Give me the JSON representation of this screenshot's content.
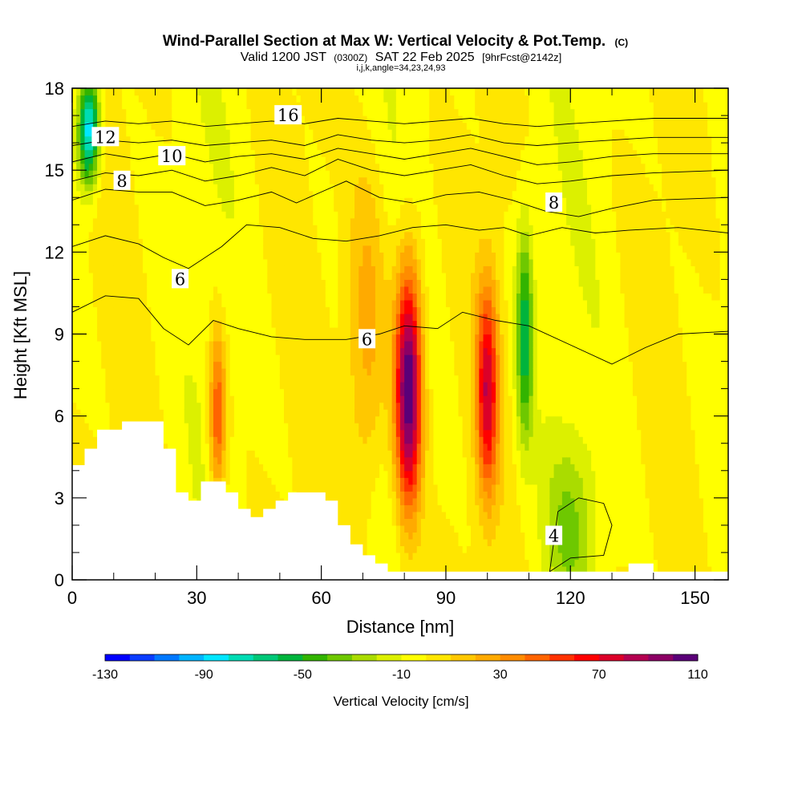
{
  "chart_data": {
    "type": "heatmap",
    "title": {
      "main": "Wind-Parallel Section at Max W: Vertical Velocity & Pot.Temp.",
      "main_suffix": "(C)",
      "valid_prefix": "Valid 1200 JST",
      "valid_utc": "(0300Z)",
      "valid_date": "SAT 22 Feb 2025",
      "forecast": "[9hrFcst@2142z]",
      "indices": "i,j,k,angle=34,23,24,93"
    },
    "xlabel": "Distance [nm]",
    "ylabel": "Height [Kft MSL]",
    "xlim": [
      0,
      158
    ],
    "ylim": [
      0,
      18
    ],
    "x_ticks": [
      "0",
      "30",
      "60",
      "90",
      "120",
      "150"
    ],
    "y_ticks": [
      "0",
      "3",
      "6",
      "9",
      "12",
      "15",
      "18"
    ],
    "colorbar": {
      "label": "Vertical Velocity [cm/s]",
      "tick_labels": [
        "-130",
        "-90",
        "-50",
        "-10",
        "30",
        "70",
        "110"
      ],
      "colors": [
        "#0000ff",
        "#0a3cff",
        "#0078ff",
        "#00b4ff",
        "#00e6ff",
        "#00dcb4",
        "#00c878",
        "#00b43c",
        "#32b400",
        "#6ec800",
        "#aadc00",
        "#dcf000",
        "#ffff00",
        "#ffe600",
        "#ffc800",
        "#ffaa00",
        "#ff8c00",
        "#ff6400",
        "#ff3200",
        "#ff0000",
        "#dc0028",
        "#b40050",
        "#8c0064",
        "#5a0078"
      ]
    },
    "updrafts": [
      {
        "x": 81,
        "z": 7,
        "w": 115,
        "sx": 3.2,
        "sz": 4.5
      },
      {
        "x": 100,
        "z": 7,
        "w": 75,
        "sx": 2.6,
        "sz": 3.8
      },
      {
        "x": 35,
        "z": 6,
        "w": 55,
        "sx": 2.0,
        "sz": 3.0
      },
      {
        "x": 71,
        "z": 9,
        "w": 30,
        "sx": 5.0,
        "sz": 6.0
      },
      {
        "x": 120,
        "z": 2,
        "w": -25,
        "sx": 6.0,
        "sz": 3.0
      },
      {
        "x": 109,
        "z": 9,
        "w": -55,
        "sx": 2.0,
        "sz": 4.0
      },
      {
        "x": 4,
        "z": 16.5,
        "w": -90,
        "sx": 2.5,
        "sz": 2.0
      }
    ],
    "terrain": [
      [
        0,
        4.2
      ],
      [
        3,
        4.2
      ],
      [
        3,
        4.8
      ],
      [
        6,
        4.8
      ],
      [
        6,
        5.5
      ],
      [
        12,
        5.5
      ],
      [
        12,
        5.8
      ],
      [
        22,
        5.8
      ],
      [
        22,
        4.8
      ],
      [
        25,
        4.8
      ],
      [
        25,
        3.2
      ],
      [
        28,
        3.2
      ],
      [
        28,
        2.9
      ],
      [
        31,
        2.9
      ],
      [
        31,
        3.6
      ],
      [
        37,
        3.6
      ],
      [
        37,
        3.2
      ],
      [
        40,
        3.2
      ],
      [
        40,
        2.6
      ],
      [
        43,
        2.6
      ],
      [
        43,
        2.3
      ],
      [
        46,
        2.3
      ],
      [
        46,
        2.6
      ],
      [
        49,
        2.6
      ],
      [
        49,
        2.9
      ],
      [
        52,
        2.9
      ],
      [
        52,
        3.2
      ],
      [
        61,
        3.2
      ],
      [
        61,
        2.9
      ],
      [
        64,
        2.9
      ],
      [
        64,
        2.0
      ],
      [
        67,
        2.0
      ],
      [
        67,
        1.3
      ],
      [
        70,
        1.3
      ],
      [
        70,
        0.9
      ],
      [
        73,
        0.9
      ],
      [
        73,
        0.6
      ],
      [
        76,
        0.6
      ],
      [
        76,
        0.3
      ],
      [
        134,
        0.3
      ],
      [
        134,
        0.6
      ],
      [
        140,
        0.6
      ],
      [
        140,
        0.3
      ],
      [
        158,
        0.3
      ]
    ],
    "theta_contours": [
      {
        "label": "4",
        "label_pos": [
          116,
          1.6
        ],
        "points": [
          [
            115,
            0.3
          ],
          [
            117,
            2.5
          ],
          [
            122,
            3.0
          ],
          [
            128,
            2.8
          ],
          [
            130,
            2.0
          ],
          [
            128,
            0.9
          ],
          [
            120,
            0.8
          ],
          [
            115,
            0.3
          ]
        ]
      },
      {
        "label": "6",
        "label_pos": [
          71,
          8.8
        ],
        "points": [
          [
            0,
            9.8
          ],
          [
            8,
            10.4
          ],
          [
            16,
            10.3
          ],
          [
            22,
            9.2
          ],
          [
            28,
            8.6
          ],
          [
            34,
            9.5
          ],
          [
            40,
            9.2
          ],
          [
            48,
            8.9
          ],
          [
            56,
            8.8
          ],
          [
            66,
            8.8
          ],
          [
            74,
            9.0
          ],
          [
            80,
            9.3
          ],
          [
            88,
            9.2
          ],
          [
            94,
            9.8
          ],
          [
            102,
            9.5
          ],
          [
            110,
            9.3
          ],
          [
            120,
            8.6
          ],
          [
            130,
            7.9
          ],
          [
            138,
            8.5
          ],
          [
            146,
            9.0
          ],
          [
            158,
            9.1
          ]
        ]
      },
      {
        "label": "6",
        "label_pos": [
          26,
          11.0
        ],
        "points": [
          [
            0,
            12.2
          ],
          [
            8,
            12.6
          ],
          [
            16,
            12.3
          ],
          [
            22,
            11.8
          ],
          [
            28,
            11.4
          ],
          [
            36,
            12.2
          ],
          [
            42,
            13.0
          ],
          [
            50,
            12.9
          ],
          [
            58,
            12.5
          ],
          [
            66,
            12.4
          ],
          [
            74,
            12.6
          ],
          [
            82,
            12.9
          ],
          [
            90,
            13.0
          ],
          [
            98,
            12.8
          ],
          [
            104,
            12.9
          ],
          [
            110,
            12.6
          ],
          [
            118,
            12.9
          ],
          [
            126,
            12.7
          ],
          [
            134,
            12.8
          ],
          [
            146,
            12.9
          ],
          [
            158,
            12.7
          ]
        ]
      },
      {
        "label": "8",
        "label_pos": [
          116,
          13.8
        ],
        "points": [
          [
            0,
            13.9
          ],
          [
            8,
            14.3
          ],
          [
            16,
            14.2
          ],
          [
            24,
            14.2
          ],
          [
            32,
            13.7
          ],
          [
            40,
            13.9
          ],
          [
            48,
            14.2
          ],
          [
            54,
            13.8
          ],
          [
            60,
            14.2
          ],
          [
            66,
            14.6
          ],
          [
            74,
            14.0
          ],
          [
            82,
            13.8
          ],
          [
            90,
            14.1
          ],
          [
            98,
            14.2
          ],
          [
            106,
            13.9
          ],
          [
            114,
            13.5
          ],
          [
            122,
            13.3
          ],
          [
            130,
            13.6
          ],
          [
            140,
            13.9
          ],
          [
            158,
            14.0
          ]
        ]
      },
      {
        "label": "8",
        "label_pos": [
          12,
          14.6
        ],
        "points": [
          [
            0,
            14.6
          ],
          [
            8,
            14.9
          ],
          [
            16,
            14.8
          ],
          [
            24,
            15.0
          ],
          [
            32,
            14.6
          ],
          [
            40,
            14.8
          ],
          [
            48,
            15.1
          ],
          [
            56,
            14.8
          ],
          [
            64,
            15.4
          ],
          [
            72,
            15.0
          ],
          [
            80,
            14.8
          ],
          [
            88,
            15.0
          ],
          [
            96,
            15.2
          ],
          [
            104,
            14.8
          ],
          [
            112,
            14.5
          ],
          [
            120,
            14.6
          ],
          [
            130,
            14.8
          ],
          [
            140,
            14.9
          ],
          [
            158,
            15.0
          ]
        ]
      },
      {
        "label": "10",
        "label_pos": [
          24,
          15.5
        ],
        "points": [
          [
            0,
            15.3
          ],
          [
            8,
            15.6
          ],
          [
            16,
            15.4
          ],
          [
            24,
            15.6
          ],
          [
            32,
            15.3
          ],
          [
            40,
            15.5
          ],
          [
            48,
            15.6
          ],
          [
            56,
            15.4
          ],
          [
            64,
            15.8
          ],
          [
            72,
            15.6
          ],
          [
            80,
            15.4
          ],
          [
            88,
            15.6
          ],
          [
            96,
            15.8
          ],
          [
            104,
            15.5
          ],
          [
            112,
            15.2
          ],
          [
            120,
            15.3
          ],
          [
            130,
            15.5
          ],
          [
            140,
            15.6
          ],
          [
            158,
            15.6
          ]
        ]
      },
      {
        "label": "12",
        "label_pos": [
          8,
          16.2
        ],
        "points": [
          [
            0,
            15.9
          ],
          [
            8,
            16.1
          ],
          [
            16,
            16.0
          ],
          [
            24,
            16.1
          ],
          [
            32,
            15.9
          ],
          [
            40,
            16.0
          ],
          [
            48,
            16.1
          ],
          [
            56,
            15.9
          ],
          [
            64,
            16.3
          ],
          [
            72,
            16.1
          ],
          [
            80,
            16.0
          ],
          [
            88,
            16.1
          ],
          [
            96,
            16.3
          ],
          [
            104,
            16.0
          ],
          [
            112,
            15.9
          ],
          [
            120,
            16.0
          ],
          [
            130,
            16.1
          ],
          [
            140,
            16.2
          ],
          [
            158,
            16.2
          ]
        ]
      },
      {
        "label": "16",
        "label_pos": [
          52,
          17.0
        ],
        "points": [
          [
            0,
            16.6
          ],
          [
            8,
            16.8
          ],
          [
            16,
            16.7
          ],
          [
            24,
            16.8
          ],
          [
            32,
            16.6
          ],
          [
            40,
            16.7
          ],
          [
            48,
            16.8
          ],
          [
            56,
            16.7
          ],
          [
            64,
            16.9
          ],
          [
            72,
            16.8
          ],
          [
            80,
            16.7
          ],
          [
            88,
            16.8
          ],
          [
            96,
            16.9
          ],
          [
            104,
            16.7
          ],
          [
            112,
            16.6
          ],
          [
            120,
            16.7
          ],
          [
            130,
            16.8
          ],
          [
            140,
            16.9
          ],
          [
            158,
            16.9
          ]
        ]
      }
    ]
  }
}
